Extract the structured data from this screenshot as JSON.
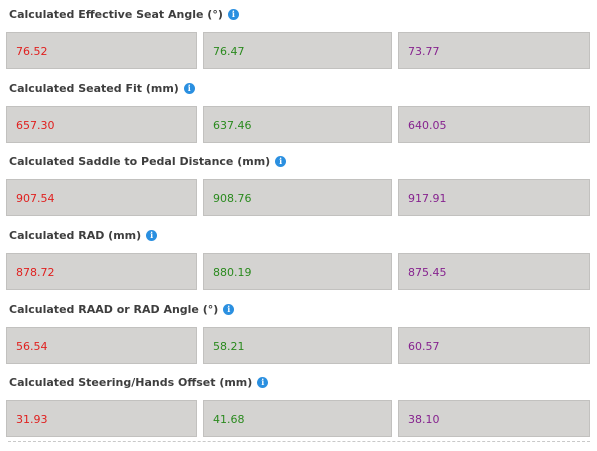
{
  "fields": [
    {
      "label": "Calculated Effective Seat Angle (°)",
      "values": [
        "76.52",
        "76.47",
        "73.77"
      ]
    },
    {
      "label": "Calculated Seated Fit (mm)",
      "values": [
        "657.30",
        "637.46",
        "640.05"
      ]
    },
    {
      "label": "Calculated Saddle to Pedal Distance (mm)",
      "values": [
        "907.54",
        "908.76",
        "917.91"
      ]
    },
    {
      "label": "Calculated RAD (mm)",
      "values": [
        "878.72",
        "880.19",
        "875.45"
      ]
    },
    {
      "label": "Calculated RAAD or RAD Angle (°)",
      "values": [
        "56.54",
        "58.21",
        "60.57"
      ]
    },
    {
      "label": "Calculated Steering/Hands Offset (mm)",
      "values": [
        "31.93",
        "41.68",
        "38.10"
      ]
    }
  ],
  "info_icon": {
    "name": "info-icon",
    "glyph": "i",
    "color": "#2a8fe0"
  },
  "column_colors": [
    "#e0201f",
    "#2a8a1e",
    "#86238f"
  ]
}
